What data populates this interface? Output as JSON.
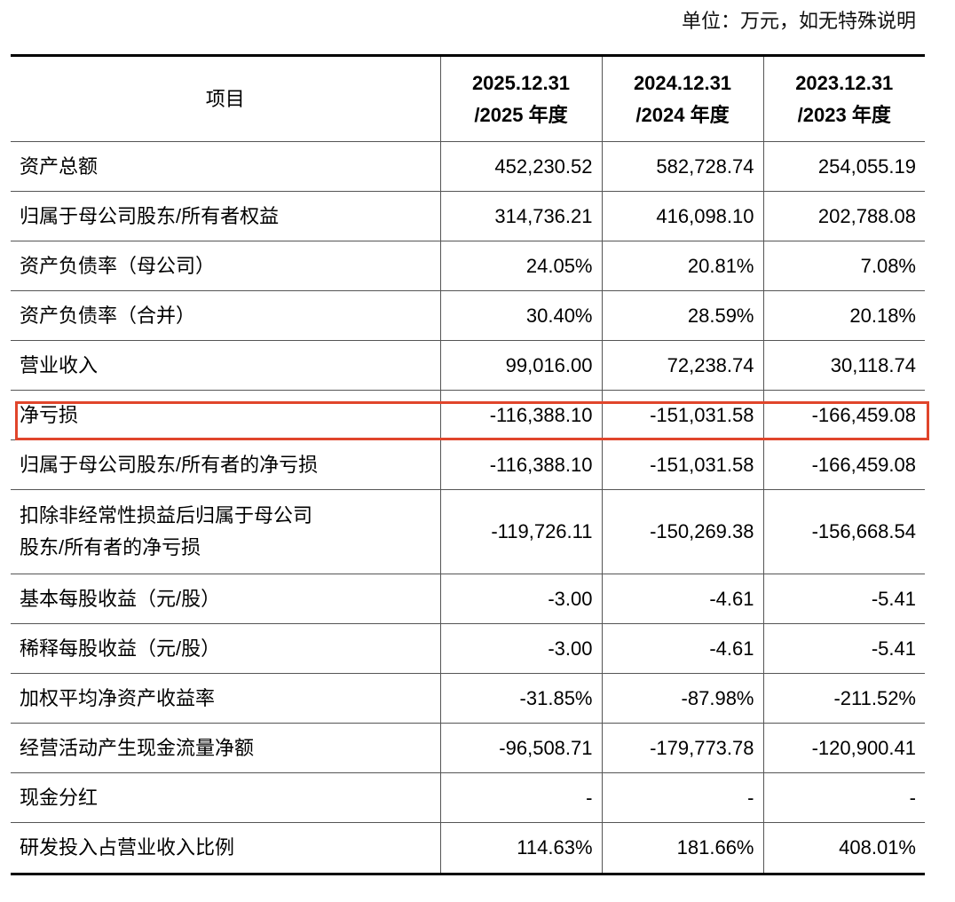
{
  "unit_note": "单位：万元，如无特殊说明",
  "header": {
    "item": "项目",
    "periods": [
      {
        "line1": "2025.12.31",
        "line2": "/2025 年度"
      },
      {
        "line1": "2024.12.31",
        "line2": "/2024 年度"
      },
      {
        "line1": "2023.12.31",
        "line2": "/2023 年度"
      }
    ]
  },
  "rows": [
    {
      "label": "资产总额",
      "values": [
        "452,230.52",
        "582,728.74",
        "254,055.19"
      ]
    },
    {
      "label": "归属于母公司股东/所有者权益",
      "values": [
        "314,736.21",
        "416,098.10",
        "202,788.08"
      ]
    },
    {
      "label": "资产负债率（母公司）",
      "values": [
        "24.05%",
        "20.81%",
        "7.08%"
      ]
    },
    {
      "label": "资产负债率（合并）",
      "values": [
        "30.40%",
        "28.59%",
        "20.18%"
      ]
    },
    {
      "label": "营业收入",
      "values": [
        "99,016.00",
        "72,238.74",
        "30,118.74"
      ]
    },
    {
      "label": "净亏损",
      "values": [
        "-116,388.10",
        "-151,031.58",
        "-166,459.08"
      ]
    },
    {
      "label": "归属于母公司股东/所有者的净亏损",
      "values": [
        "-116,388.10",
        "-151,031.58",
        "-166,459.08"
      ]
    },
    {
      "label_line1": "扣除非经常性损益后归属于母公司",
      "label_line2": "股东/所有者的净亏损",
      "values": [
        "-119,726.11",
        "-150,269.38",
        "-156,668.54"
      ]
    },
    {
      "label": "基本每股收益（元/股）",
      "values": [
        "-3.00",
        "-4.61",
        "-5.41"
      ]
    },
    {
      "label": "稀释每股收益（元/股）",
      "values": [
        "-3.00",
        "-4.61",
        "-5.41"
      ]
    },
    {
      "label": "加权平均净资产收益率",
      "values": [
        "-31.85%",
        "-87.98%",
        "-211.52%"
      ]
    },
    {
      "label": "经营活动产生现金流量净额",
      "values": [
        "-96,508.71",
        "-179,773.78",
        "-120,900.41"
      ]
    },
    {
      "label": "现金分红",
      "values": [
        "-",
        "-",
        "-"
      ]
    },
    {
      "label": "研发投入占营业收入比例",
      "values": [
        "114.63%",
        "181.66%",
        "408.01%"
      ]
    }
  ],
  "highlight_color": "#e0452b"
}
